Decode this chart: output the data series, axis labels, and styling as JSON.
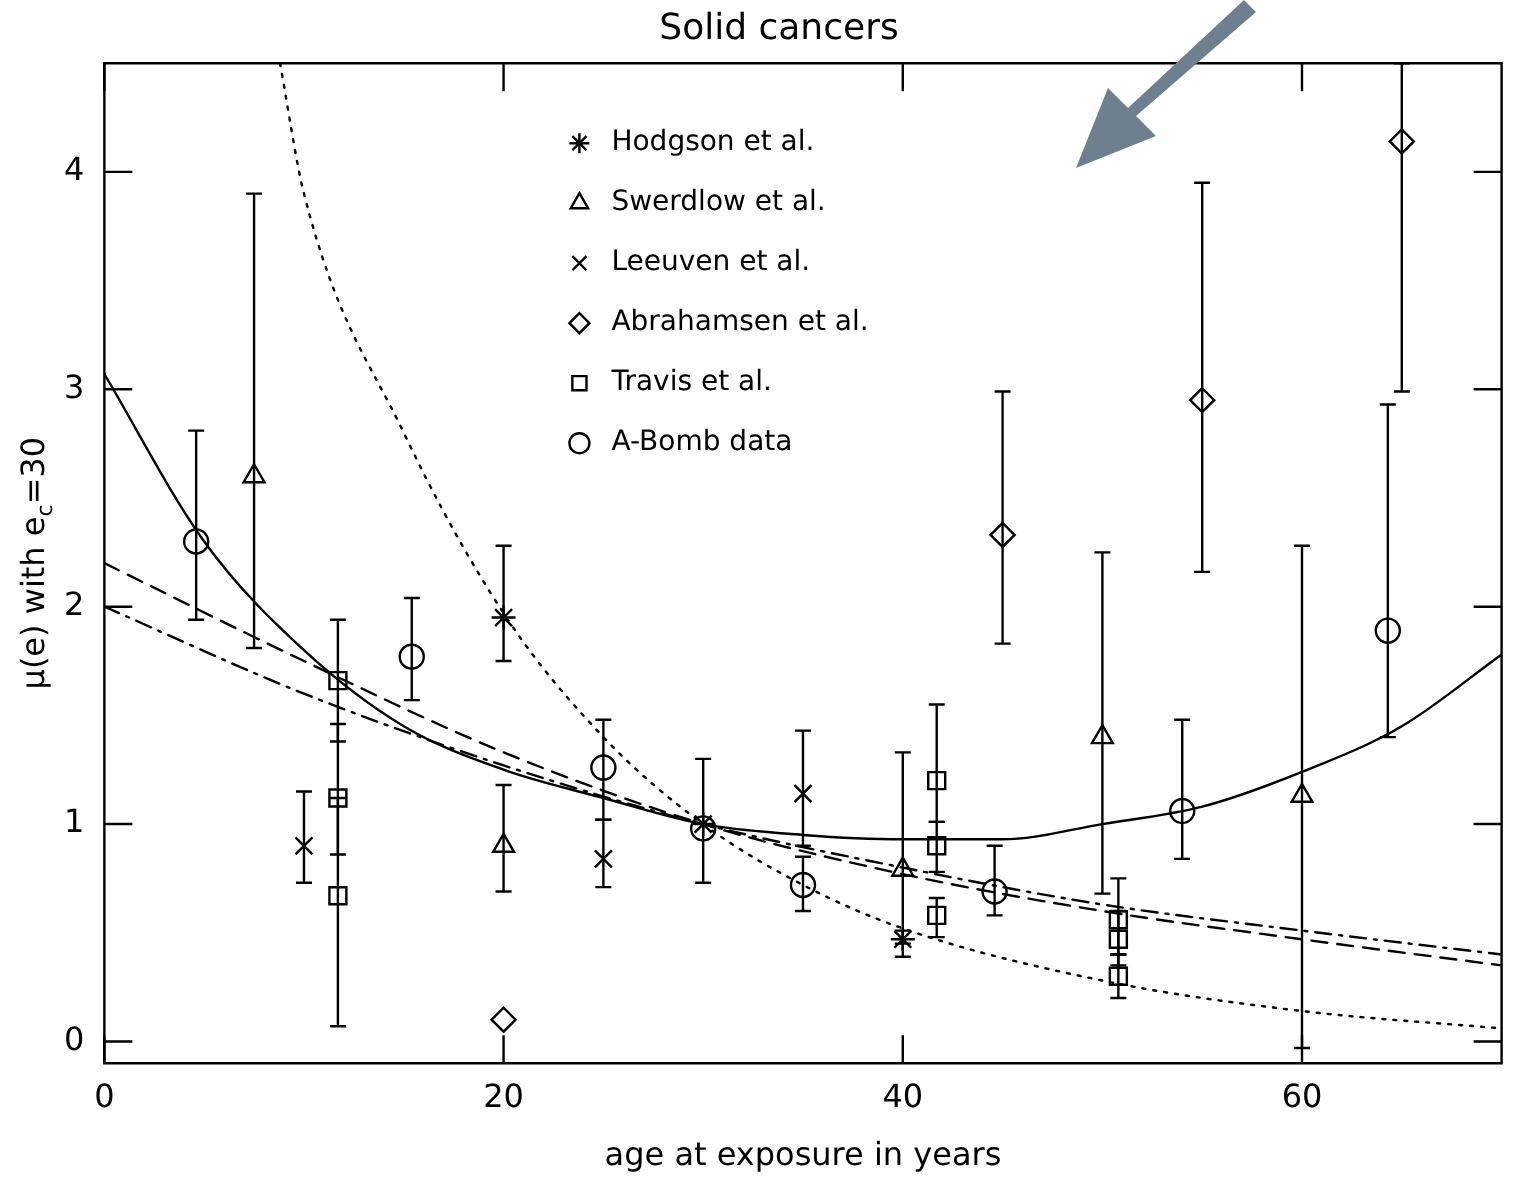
{
  "chart_data": {
    "type": "scatter",
    "title": "Solid cancers",
    "xlabel": "age at exposure in years",
    "ylabel": "μ(e) with e$_{c}$=30",
    "xlim": [
      0,
      70
    ],
    "ylim": [
      -0.1,
      4.5
    ],
    "xticks": [
      0,
      20,
      40,
      60
    ],
    "yticks": [
      0,
      1,
      2,
      3,
      4
    ],
    "legend": "top",
    "series": [
      {
        "name": "Hodgson et al.",
        "color": "#000000",
        "x": [
          20,
          30,
          40
        ],
        "values": [
          1.95,
          1.0,
          0.47
        ],
        "errors": [
          [
            1.75,
            2.28
          ],
          null,
          [
            0.39,
            0.51
          ]
        ]
      },
      {
        "name": "Swerdlow et al.",
        "color": "#000000",
        "marker": "triangle",
        "x": [
          7.5,
          20,
          40,
          50,
          60
        ],
        "values": [
          2.6,
          0.9,
          0.79,
          1.4,
          1.13
        ],
        "errors": [
          [
            1.81,
            3.9
          ],
          [
            0.69,
            1.18
          ],
          [
            0.45,
            1.33
          ],
          [
            0.68,
            2.25
          ],
          [
            -0.03,
            2.28
          ]
        ]
      },
      {
        "name": "Leeuven et al.",
        "color": "#000000",
        "marker": "cross",
        "x": [
          10,
          25,
          35
        ],
        "values": [
          0.9,
          0.84,
          1.14
        ],
        "errors": [
          [
            0.73,
            1.15
          ],
          [
            0.71,
            1.02
          ],
          [
            0.9,
            1.43
          ]
        ]
      },
      {
        "name": "Abrahamsen et al.",
        "color": "#000000",
        "marker": "diamond",
        "x": [
          20,
          45,
          55,
          65
        ],
        "values": [
          0.1,
          2.33,
          2.95,
          4.14
        ],
        "errors": [
          null,
          [
            1.83,
            2.99
          ],
          [
            2.16,
            3.95
          ],
          [
            2.99,
            4.5
          ]
        ]
      },
      {
        "name": "Travis et al.",
        "color": "#000000",
        "marker": "square",
        "x": [
          11.7,
          11.7,
          11.7,
          41.7,
          41.7,
          41.7,
          50.8,
          50.8,
          50.8
        ],
        "values": [
          1.66,
          1.12,
          0.67,
          1.2,
          0.9,
          0.58,
          0.56,
          0.47,
          0.3
        ],
        "errors": [
          [
            1.38,
            1.94
          ],
          [
            0.86,
            1.46
          ],
          [
            0.07,
            1.12
          ],
          [
            1.01,
            1.55
          ],
          [
            0.78,
            1.01
          ],
          [
            0.48,
            0.66
          ],
          [
            0.4,
            0.75
          ],
          [
            0.35,
            0.6
          ],
          [
            0.2,
            0.4
          ]
        ]
      },
      {
        "name": "A-Bomb data",
        "color": "#000000",
        "marker": "circle",
        "x": [
          4.6,
          15.4,
          25,
          30,
          35,
          44.6,
          54,
          64.3
        ],
        "values": [
          2.3,
          1.77,
          1.26,
          0.98,
          0.72,
          0.69,
          1.06,
          1.89
        ],
        "errors": [
          [
            1.94,
            2.81
          ],
          [
            1.57,
            2.04
          ],
          [
            1.02,
            1.48
          ],
          [
            0.73,
            1.3
          ],
          [
            0.6,
            0.85
          ],
          [
            0.58,
            0.9
          ],
          [
            0.84,
            1.48
          ],
          [
            1.4,
            2.93
          ]
        ]
      },
      {
        "type": "line",
        "color": "#000000",
        "line_style": "solid",
        "x": [
          0,
          5,
          10,
          15,
          20,
          25,
          30,
          35,
          40,
          45,
          50,
          55,
          60,
          65,
          70
        ],
        "values": [
          3.07,
          2.3,
          1.8,
          1.45,
          1.25,
          1.12,
          1.0,
          0.95,
          0.93,
          0.93,
          1.0,
          1.08,
          1.24,
          1.45,
          1.78
        ]
      },
      {
        "type": "line",
        "color": "#000000",
        "line_style": "dashed",
        "x": [
          0,
          10,
          20,
          30,
          40,
          50,
          60,
          70
        ],
        "values": [
          2.2,
          1.75,
          1.33,
          1.0,
          0.77,
          0.6,
          0.47,
          0.35
        ]
      },
      {
        "type": "line",
        "color": "#000000",
        "line_style": "dashdot",
        "x": [
          0,
          10,
          20,
          30,
          40,
          50,
          60,
          70
        ],
        "values": [
          2.0,
          1.6,
          1.27,
          1.0,
          0.8,
          0.63,
          0.51,
          0.4
        ]
      },
      {
        "type": "line",
        "color": "#000000",
        "line_style": "dotted",
        "x": [
          8.8,
          10,
          15,
          20,
          25,
          30,
          35,
          40,
          50,
          60,
          70
        ],
        "values": [
          4.5,
          3.9,
          2.8,
          1.97,
          1.4,
          1.0,
          0.72,
          0.52,
          0.28,
          0.14,
          0.06
        ]
      }
    ]
  }
}
